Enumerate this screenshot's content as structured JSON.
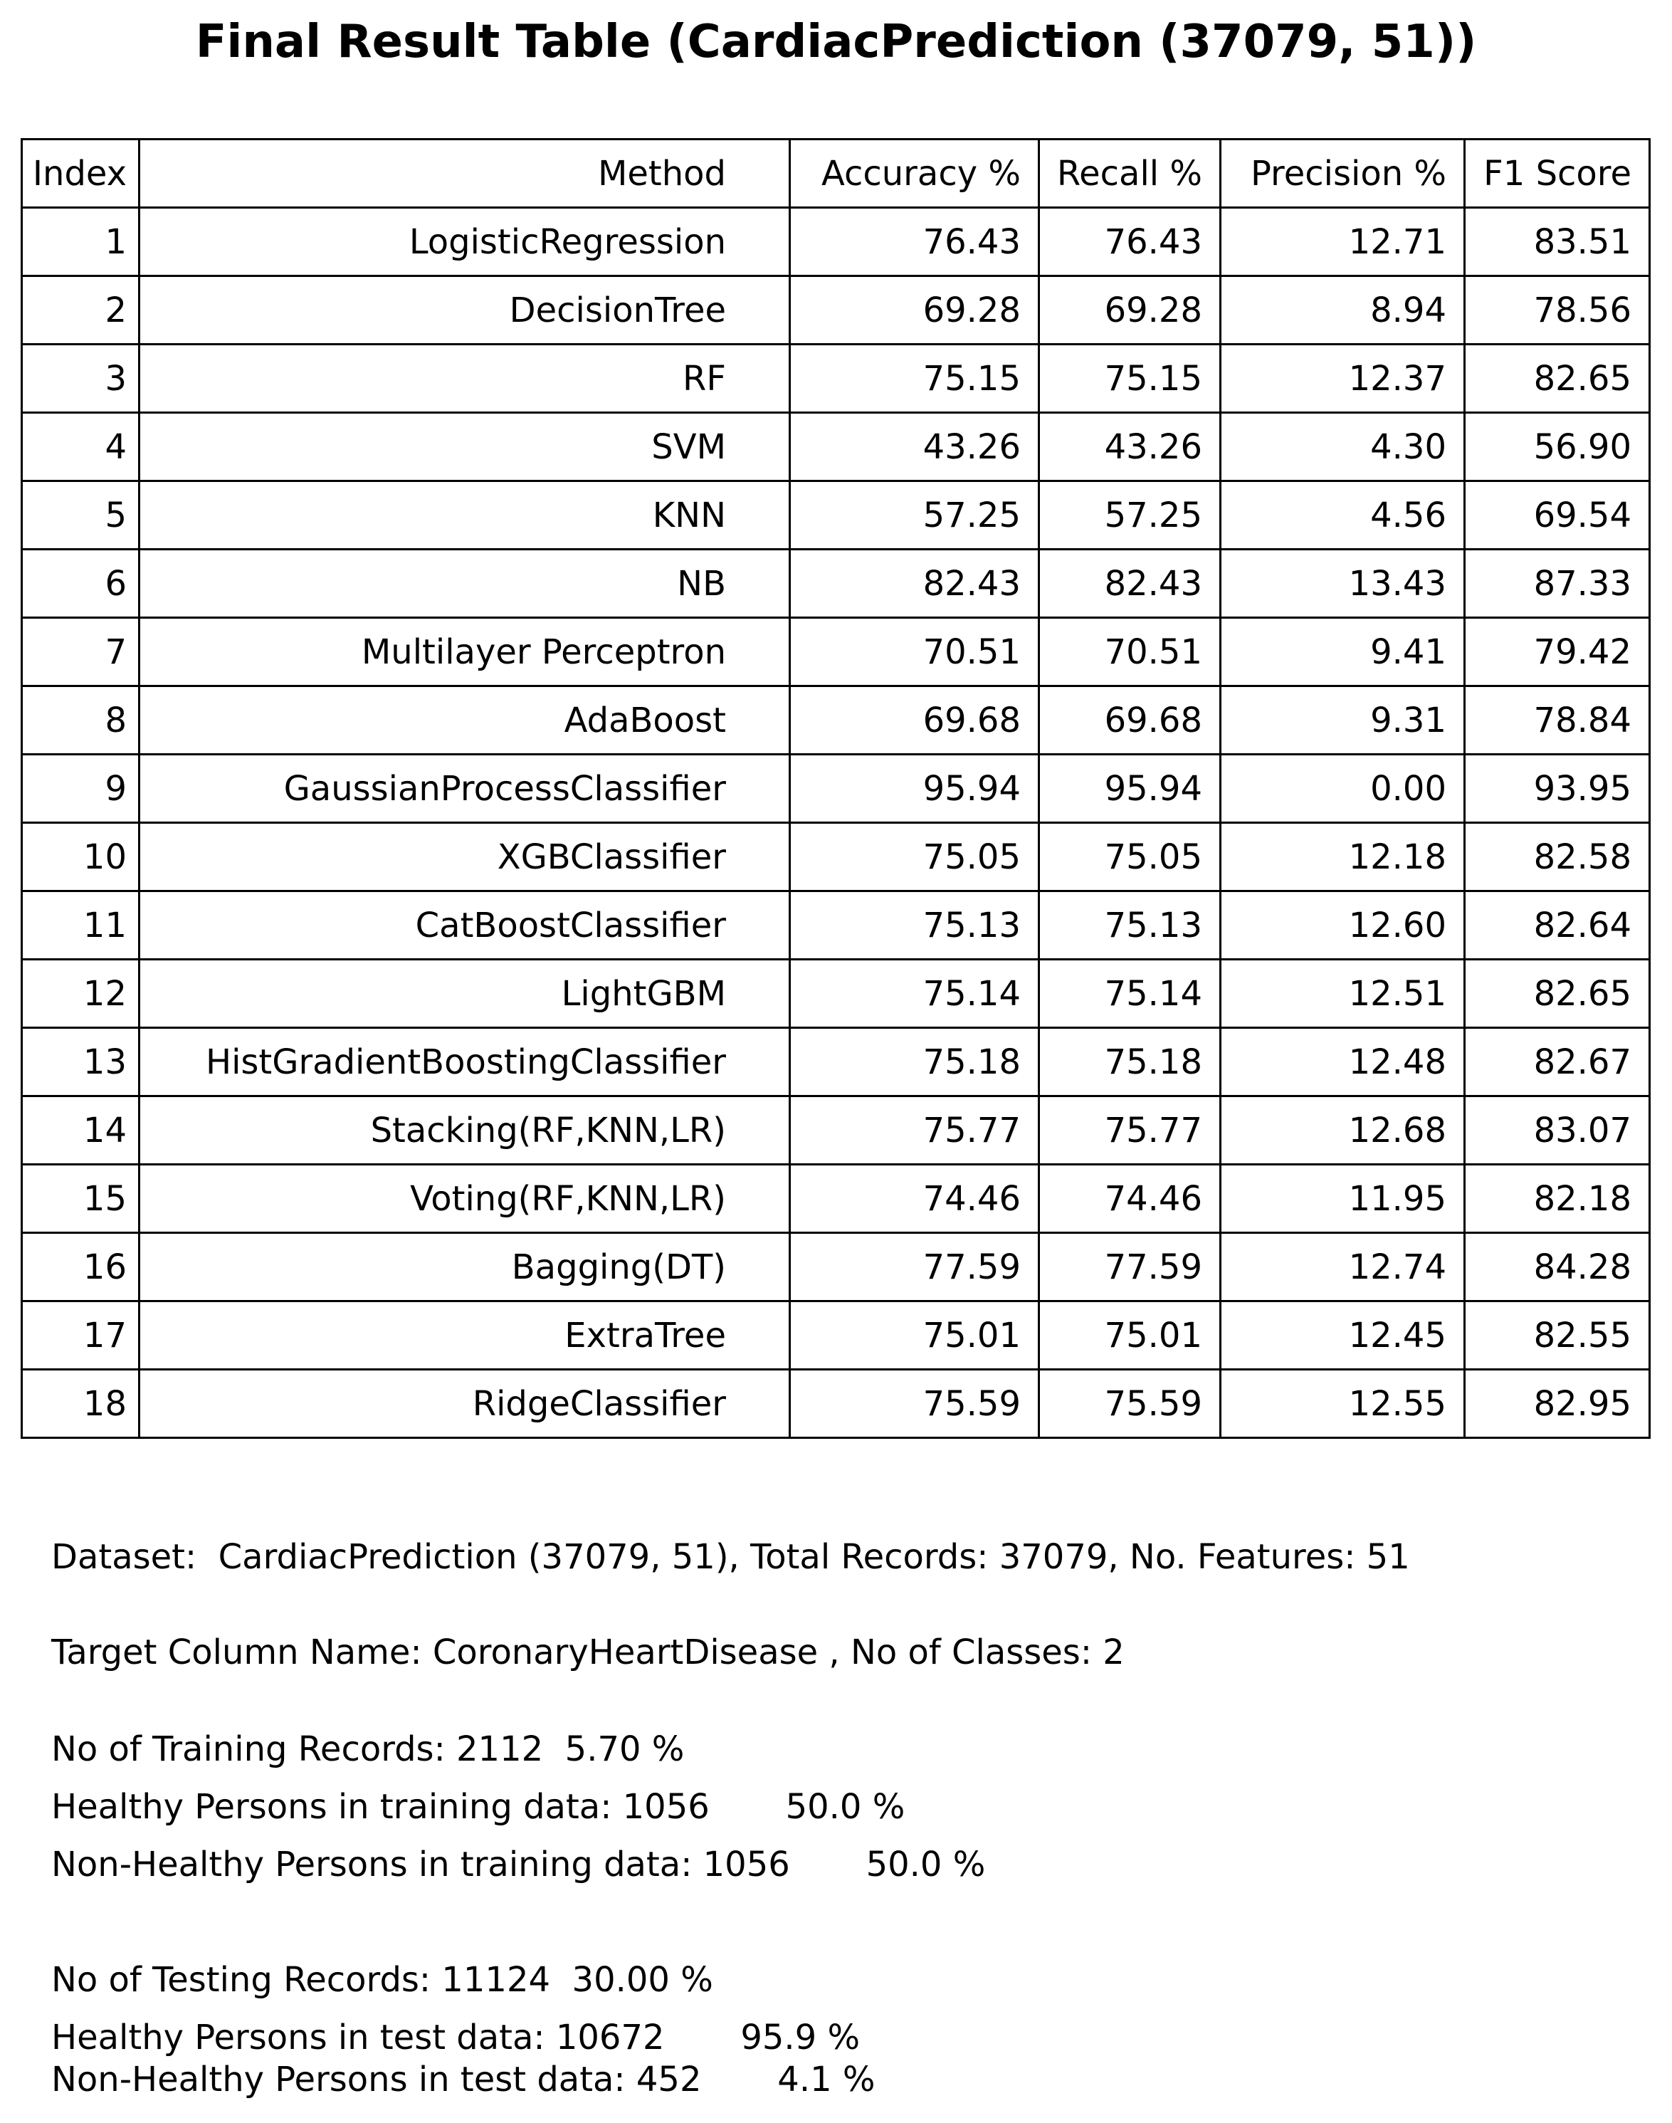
{
  "title": "Final Result Table (CardiacPrediction (37079, 51))",
  "table": {
    "headers": [
      "Index",
      "Method",
      "Accuracy %",
      "Recall %",
      "Precision %",
      "F1 Score"
    ],
    "rows": [
      [
        "1",
        "LogisticRegression",
        "76.43",
        "76.43",
        "12.71",
        "83.51"
      ],
      [
        "2",
        "DecisionTree",
        "69.28",
        "69.28",
        "8.94",
        "78.56"
      ],
      [
        "3",
        "RF",
        "75.15",
        "75.15",
        "12.37",
        "82.65"
      ],
      [
        "4",
        "SVM",
        "43.26",
        "43.26",
        "4.30",
        "56.90"
      ],
      [
        "5",
        "KNN",
        "57.25",
        "57.25",
        "4.56",
        "69.54"
      ],
      [
        "6",
        "NB",
        "82.43",
        "82.43",
        "13.43",
        "87.33"
      ],
      [
        "7",
        "Multilayer Perceptron",
        "70.51",
        "70.51",
        "9.41",
        "79.42"
      ],
      [
        "8",
        "AdaBoost",
        "69.68",
        "69.68",
        "9.31",
        "78.84"
      ],
      [
        "9",
        "GaussianProcessClassifier",
        "95.94",
        "95.94",
        "0.00",
        "93.95"
      ],
      [
        "10",
        "XGBClassifier",
        "75.05",
        "75.05",
        "12.18",
        "82.58"
      ],
      [
        "11",
        "CatBoostClassifier",
        "75.13",
        "75.13",
        "12.60",
        "82.64"
      ],
      [
        "12",
        "LightGBM",
        "75.14",
        "75.14",
        "12.51",
        "82.65"
      ],
      [
        "13",
        "HistGradientBoostingClassifier",
        "75.18",
        "75.18",
        "12.48",
        "82.67"
      ],
      [
        "14",
        "Stacking(RF,KNN,LR)",
        "75.77",
        "75.77",
        "12.68",
        "83.07"
      ],
      [
        "15",
        "Voting(RF,KNN,LR)",
        "74.46",
        "74.46",
        "11.95",
        "82.18"
      ],
      [
        "16",
        "Bagging(DT)",
        "77.59",
        "77.59",
        "12.74",
        "84.28"
      ],
      [
        "17",
        "ExtraTree",
        "75.01",
        "75.01",
        "12.45",
        "82.55"
      ],
      [
        "18",
        "RidgeClassifier",
        "75.59",
        "75.59",
        "12.55",
        "82.95"
      ]
    ]
  },
  "info": {
    "dataset_line": "Dataset:  CardiacPrediction (37079, 51), Total Records: 37079, No. Features: 51",
    "target_line": "Target Column Name: CoronaryHeartDisease , No of Classes: 2",
    "training_records_line": "No of Training Records: 2112  5.70 %",
    "healthy_training_line": "Healthy Persons in training data: 1056       50.0 %",
    "nonhealthy_training_line": "Non-Healthy Persons in training data: 1056       50.0 %",
    "testing_records_line": "No of Testing Records: 11124  30.00 %",
    "healthy_test_line": "Healthy Persons in test data: 10672       95.9 %",
    "nonhealthy_test_line": "Non-Healthy Persons in test data: 452       4.1 %"
  }
}
